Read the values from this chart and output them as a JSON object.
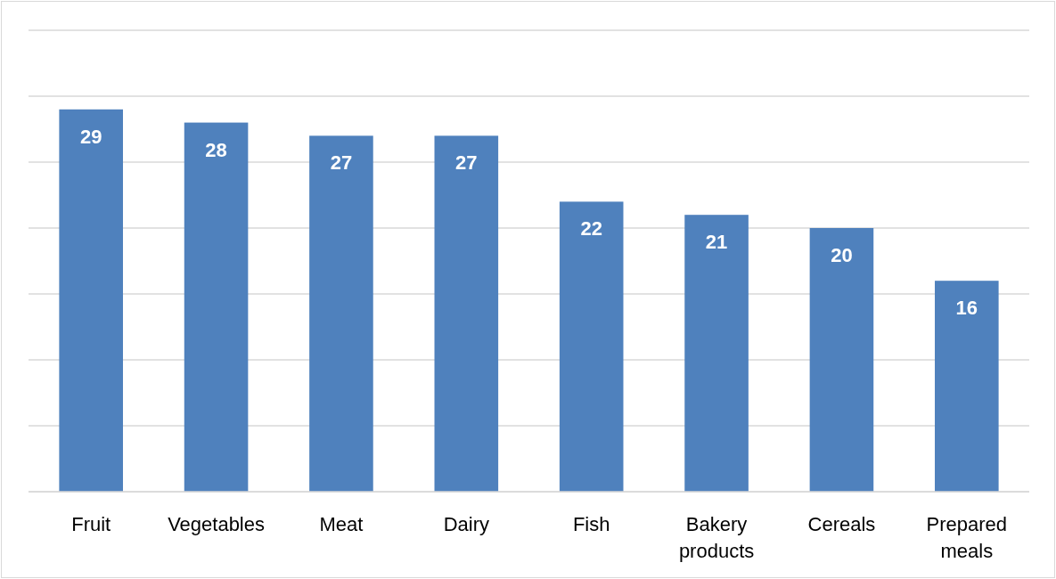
{
  "chart_data": {
    "type": "bar",
    "categories": [
      "Fruit",
      "Vegetables",
      "Meat",
      "Dairy",
      "Fish",
      "Bakery products",
      "Cereals",
      "Prepared meals"
    ],
    "values": [
      29,
      28,
      27,
      27,
      22,
      21,
      20,
      16
    ],
    "color": "#4f81bd",
    "ylim": [
      0,
      35
    ],
    "yticks": [
      {
        "value": 0,
        "label": null
      },
      {
        "value": 5,
        "label": null
      },
      {
        "value": 10,
        "label": null
      },
      {
        "value": 15,
        "label": null
      },
      {
        "value": 20,
        "label": null
      },
      {
        "value": 25,
        "label": null
      },
      {
        "value": 30,
        "label": null
      },
      {
        "value": 35,
        "label": null
      }
    ],
    "tick_labels": "x",
    "grid": "y",
    "data_labels": true
  }
}
